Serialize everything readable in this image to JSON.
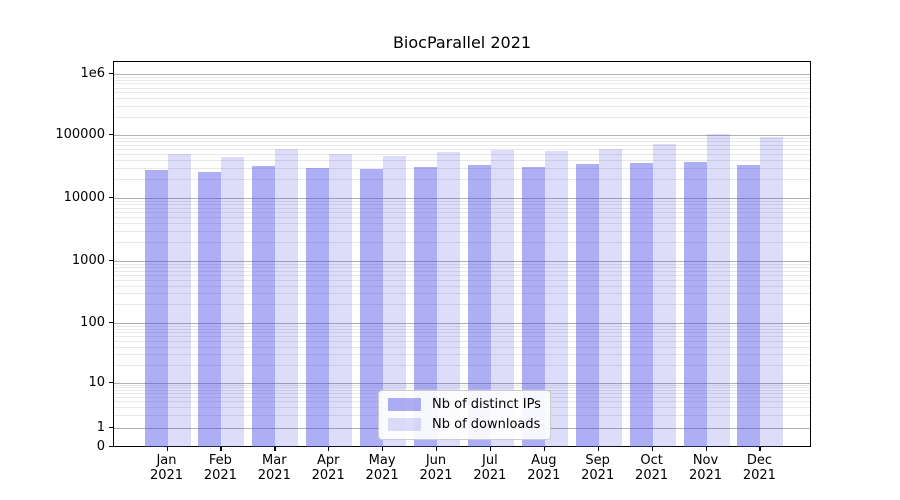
{
  "chart_data": {
    "type": "bar",
    "title": "BiocParallel 2021",
    "yscale": "symlog",
    "grid": "horizontal major and minor, log minors at 2-9 per decade",
    "legend_position": "lower center inside plot",
    "categories": [
      {
        "month": "Jan",
        "year": "2021"
      },
      {
        "month": "Feb",
        "year": "2021"
      },
      {
        "month": "Mar",
        "year": "2021"
      },
      {
        "month": "Apr",
        "year": "2021"
      },
      {
        "month": "May",
        "year": "2021"
      },
      {
        "month": "Jun",
        "year": "2021"
      },
      {
        "month": "Jul",
        "year": "2021"
      },
      {
        "month": "Aug",
        "year": "2021"
      },
      {
        "month": "Sep",
        "year": "2021"
      },
      {
        "month": "Oct",
        "year": "2021"
      },
      {
        "month": "Nov",
        "year": "2021"
      },
      {
        "month": "Dec",
        "year": "2021"
      }
    ],
    "series": [
      {
        "name": "Nb of distinct IPs",
        "color": "rgba(75,75,230,0.45)",
        "color_solid": "#aeaef3",
        "values": [
          28000,
          26000,
          32500,
          30000,
          29000,
          31500,
          34000,
          31500,
          34500,
          35500,
          38000,
          34000
        ]
      },
      {
        "name": "Nb of downloads",
        "color": "rgba(75,75,230,0.19)",
        "color_solid": "#dedef9",
        "values": [
          50000,
          45000,
          59000,
          50000,
          47000,
          54000,
          58000,
          56000,
          59000,
          73000,
          103000,
          93000
        ]
      }
    ],
    "yticks": [
      {
        "value": 0,
        "label": "0"
      },
      {
        "value": 1,
        "label": "1"
      },
      {
        "value": 10,
        "label": "10"
      },
      {
        "value": 100,
        "label": "100"
      },
      {
        "value": 1000,
        "label": "1000"
      },
      {
        "value": 10000,
        "label": "10000"
      },
      {
        "value": 100000,
        "label": "100000"
      },
      {
        "value": 1000000,
        "label": "1e6"
      }
    ]
  },
  "colors": {
    "background": "#ffffff",
    "axis": "#000000",
    "major_grid": "#b0b0b0",
    "minor_grid": "#e8e8e8",
    "legend_border": "#cccccc",
    "legend_background": "rgba(255,255,255,0.9)",
    "text": "#000000"
  }
}
